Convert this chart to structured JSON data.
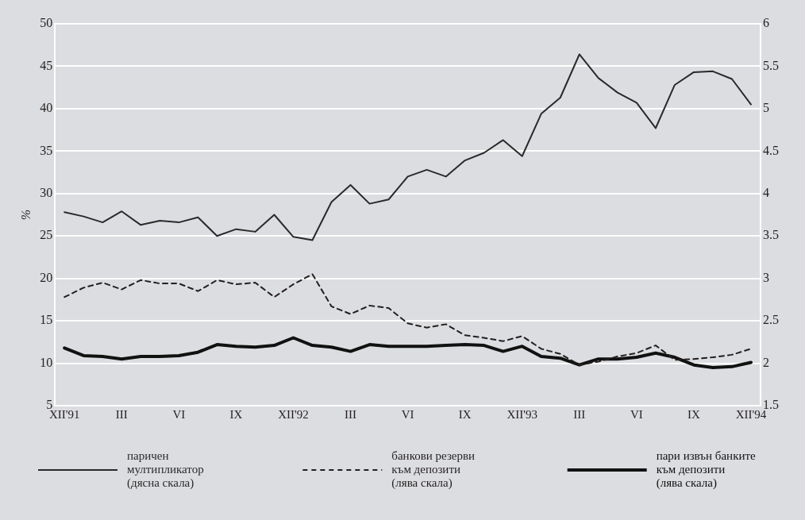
{
  "chart_data": {
    "type": "line",
    "ylabel": "%",
    "categories": [
      "XII'91",
      null,
      null,
      "III",
      null,
      null,
      "VI",
      null,
      null,
      "IX",
      null,
      null,
      "XII'92",
      null,
      null,
      "III",
      null,
      null,
      "VI",
      null,
      null,
      "IX",
      null,
      null,
      "XII'93",
      null,
      null,
      "III",
      null,
      null,
      "VI",
      null,
      null,
      "IX",
      null,
      null,
      "XII'94"
    ],
    "series": [
      {
        "name": "паричен мултипликатор (дясна скала)",
        "color": "#2a2a2a",
        "axis": "y2",
        "line_style": "solid",
        "values": [
          3.78,
          3.73,
          3.66,
          3.79,
          3.63,
          3.68,
          3.66,
          3.72,
          3.5,
          3.58,
          3.55,
          3.75,
          3.49,
          3.45,
          3.9,
          4.1,
          3.88,
          3.93,
          4.2,
          4.28,
          4.2,
          4.39,
          4.48,
          4.63,
          4.44,
          4.94,
          5.13,
          5.64,
          5.36,
          5.19,
          5.07,
          4.77,
          5.28,
          5.43,
          5.44,
          5.35,
          5.05
        ]
      },
      {
        "name": "банкови резерви към депозити (лява скала)",
        "color": "#231f20",
        "line_style": "dashed",
        "values": [
          17.8,
          18.9,
          19.5,
          18.7,
          19.8,
          19.4,
          19.4,
          18.5,
          19.8,
          19.3,
          19.5,
          17.8,
          19.3,
          20.5,
          16.7,
          15.8,
          16.8,
          16.5,
          14.7,
          14.2,
          14.6,
          13.3,
          13.0,
          12.6,
          13.2,
          11.7,
          11.1,
          9.8,
          10.2,
          10.8,
          11.2,
          12.1,
          10.4,
          10.5,
          10.7,
          11.0,
          11.7
        ]
      },
      {
        "name": "пари извън банките към депозити (лява скала)",
        "color": "#111111",
        "line_style": "solid",
        "values": [
          11.8,
          10.9,
          10.8,
          10.5,
          10.8,
          10.8,
          10.9,
          11.3,
          12.2,
          12.0,
          11.9,
          12.1,
          13.0,
          12.1,
          11.9,
          11.4,
          12.2,
          12.0,
          12.0,
          12.0,
          12.1,
          12.2,
          12.1,
          11.4,
          12.0,
          10.8,
          10.6,
          9.8,
          10.5,
          10.5,
          10.7,
          11.2,
          10.7,
          9.8,
          9.5,
          9.6,
          10.1
        ]
      }
    ],
    "ylim": [
      5,
      50
    ],
    "yticks": [
      5,
      10,
      15,
      20,
      25,
      30,
      35,
      40,
      45,
      50
    ],
    "y2lim": [
      1.5,
      6
    ],
    "y2ticks": [
      1.5,
      2,
      2.5,
      3,
      3.5,
      4,
      4.5,
      5,
      5.5,
      6
    ],
    "grid": "y",
    "legend": "bottom",
    "marker": "none"
  }
}
